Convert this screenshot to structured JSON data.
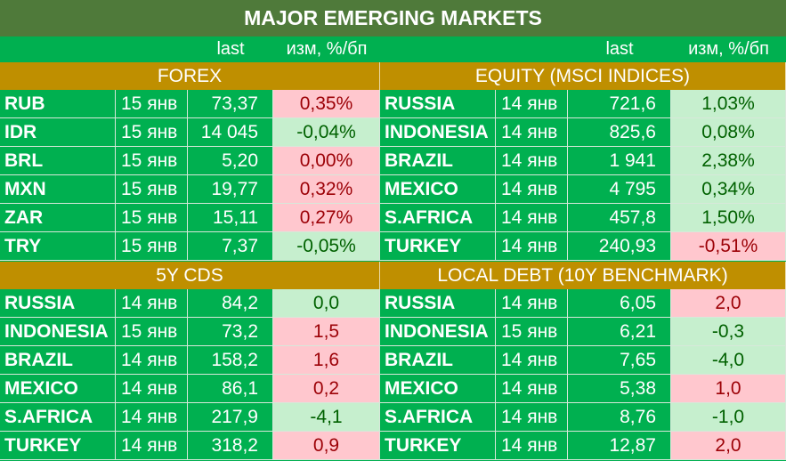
{
  "title": "MAJOR   EMERGING MARKETS",
  "column_headers": {
    "last": "last",
    "change": "изм, %/бп"
  },
  "blocks": [
    {
      "left": {
        "title": "FOREX",
        "rows": [
          {
            "name": "RUB",
            "date": "15 янв",
            "last": "73,37",
            "change": "0,35%",
            "trend": "pos"
          },
          {
            "name": "IDR",
            "date": "15 янв",
            "last": "14 045",
            "change": "-0,04%",
            "trend": "neg"
          },
          {
            "name": "BRL",
            "date": "15 янв",
            "last": "5,20",
            "change": "0,00%",
            "trend": "pos"
          },
          {
            "name": "MXN",
            "date": "15 янв",
            "last": "19,77",
            "change": "0,32%",
            "trend": "pos"
          },
          {
            "name": "ZAR",
            "date": "15 янв",
            "last": "15,11",
            "change": "0,27%",
            "trend": "pos"
          },
          {
            "name": "TRY",
            "date": "15 янв",
            "last": "7,37",
            "change": "-0,05%",
            "trend": "neg"
          }
        ]
      },
      "right": {
        "title": "EQUITY (MSCI INDICES)",
        "rows": [
          {
            "name": "RUSSIA",
            "date": "14 янв",
            "last": "721,6",
            "change": "1,03%",
            "trend": "neg"
          },
          {
            "name": "INDONESIA",
            "date": "14 янв",
            "last": "825,6",
            "change": "0,08%",
            "trend": "neg"
          },
          {
            "name": "BRAZIL",
            "date": "14 янв",
            "last": "1 941",
            "change": "2,38%",
            "trend": "neg"
          },
          {
            "name": "MEXICO",
            "date": "14 янв",
            "last": "4 795",
            "change": "0,34%",
            "trend": "neg"
          },
          {
            "name": "S.AFRICA",
            "date": "14 янв",
            "last": "457,8",
            "change": "1,50%",
            "trend": "neg"
          },
          {
            "name": "TURKEY",
            "date": "14 янв",
            "last": "240,93",
            "change": "-0,51%",
            "trend": "pos"
          }
        ]
      }
    },
    {
      "left": {
        "title": "5Y CDS",
        "rows": [
          {
            "name": "RUSSIA",
            "date": "14 янв",
            "last": "84,2",
            "change": "0,0",
            "trend": "neg"
          },
          {
            "name": "INDONESIA",
            "date": "15 янв",
            "last": "73,2",
            "change": "1,5",
            "trend": "pos"
          },
          {
            "name": "BRAZIL",
            "date": "14 янв",
            "last": "158,2",
            "change": "1,6",
            "trend": "pos"
          },
          {
            "name": "MEXICO",
            "date": "14 янв",
            "last": "86,1",
            "change": "0,2",
            "trend": "pos"
          },
          {
            "name": "S.AFRICA",
            "date": "14 янв",
            "last": "217,9",
            "change": "-4,1",
            "trend": "neg"
          },
          {
            "name": "TURKEY",
            "date": "14 янв",
            "last": "318,2",
            "change": "0,9",
            "trend": "pos"
          }
        ]
      },
      "right": {
        "title": "LOCAL DEBT (10Y BENCHMARK)",
        "rows": [
          {
            "name": "RUSSIA",
            "date": "14 янв",
            "last": "6,05",
            "change": "2,0",
            "trend": "pos"
          },
          {
            "name": "INDONESIA",
            "date": "15 янв",
            "last": "6,21",
            "change": "-0,3",
            "trend": "neg"
          },
          {
            "name": "BRAZIL",
            "date": "14 янв",
            "last": "7,65",
            "change": "-4,0",
            "trend": "neg"
          },
          {
            "name": "MEXICO",
            "date": "14 янв",
            "last": "5,38",
            "change": "1,0",
            "trend": "pos"
          },
          {
            "name": "S.AFRICA",
            "date": "14 янв",
            "last": "8,76",
            "change": "-1,0",
            "trend": "neg"
          },
          {
            "name": "TURKEY",
            "date": "14 янв",
            "last": "12,87",
            "change": "2,0",
            "trend": "pos"
          }
        ]
      }
    }
  ],
  "colors": {
    "table_green": "#00b050",
    "title_green": "#4f7a3a",
    "section_gold": "#bf8f00",
    "rise_fill": "#ffc7ce",
    "fall_fill": "#c6efce"
  }
}
